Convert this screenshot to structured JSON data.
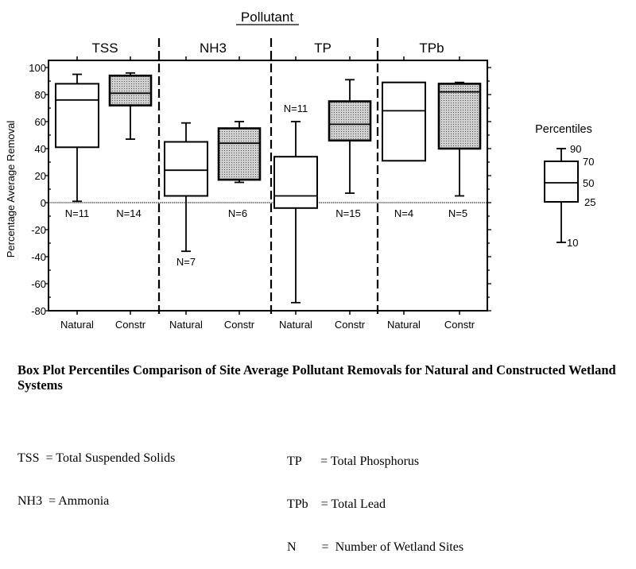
{
  "chart_data": {
    "type": "box",
    "title": "Pollutant",
    "ylabel": "Percentage Average Removal",
    "ylim": [
      -80,
      100
    ],
    "yticks": [
      100,
      80,
      60,
      40,
      20,
      0,
      -20,
      -40,
      -60,
      -80
    ],
    "reference_line": 0,
    "groups": [
      {
        "name": "TSS",
        "boxes": [
          {
            "category": "Natural",
            "p10": 1,
            "p25": 41,
            "p50": 76,
            "p70": 88,
            "p90": 95,
            "n_label": "N=11",
            "filled": false
          },
          {
            "category": "Constr",
            "p10": 47,
            "p25": 72,
            "p50": 81,
            "p70": 94,
            "p90": 96,
            "n_label": "N=14",
            "filled": true
          }
        ]
      },
      {
        "name": "NH3",
        "boxes": [
          {
            "category": "Natural",
            "p10": -36,
            "p25": 5,
            "p50": 24,
            "p70": 45,
            "p90": 59,
            "n_label": "N=7",
            "filled": false
          },
          {
            "category": "Constr",
            "p10": 15,
            "p25": 17,
            "p50": 44,
            "p70": 55,
            "p90": 60,
            "n_label": "N=6",
            "filled": true
          }
        ]
      },
      {
        "name": "TP",
        "boxes": [
          {
            "category": "Natural",
            "p10": -74,
            "p25": -4,
            "p50": 5,
            "p70": 34,
            "p90": 60,
            "n_label": "N=11",
            "filled": false
          },
          {
            "category": "Constr",
            "p10": 7,
            "p25": 46,
            "p50": 58,
            "p70": 75,
            "p90": 91,
            "n_label": "N=15",
            "filled": true
          }
        ]
      },
      {
        "name": "TPb",
        "boxes": [
          {
            "category": "Natural",
            "p10": 31,
            "p25": 31,
            "p50": 68,
            "p70": 89,
            "p90": 89,
            "n_label": "N=4",
            "filled": false
          },
          {
            "category": "Constr",
            "p10": 5,
            "p25": 40,
            "p50": 82,
            "p70": 88,
            "p90": 89,
            "n_label": "N=5",
            "filled": true
          }
        ]
      }
    ],
    "legend": {
      "title": "Percentiles",
      "labels": [
        "90",
        "70",
        "50",
        "25",
        "10"
      ],
      "placement": "right"
    },
    "colors": {
      "filled_box": "#b8b8b8",
      "line": "#000000"
    }
  },
  "caption": "Box Plot Percentiles Comparison of Site Average Pollutant Removals for Natural and Constructed Wetland Systems",
  "definitions": {
    "left": [
      "TSS  = Total Suspended Solids",
      "NH3  = Ammonia"
    ],
    "right": [
      "TP      = Total Phosphorus",
      "TPb    = Total Lead",
      "N        =  Number of Wetland Sites"
    ]
  }
}
